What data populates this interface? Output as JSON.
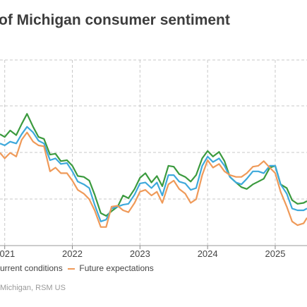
{
  "title": "of Michigan consumer sentiment",
  "legend": {
    "items": [
      {
        "label": "urrent conditions",
        "color": "#ef9a59"
      },
      {
        "label": "Future expectations",
        "color": "#ef9a59"
      }
    ]
  },
  "source": "Michigan, RSM US",
  "colors": {
    "sentiment": "#3b9a3e",
    "current": "#3ea9db",
    "expectations": "#ef9a59",
    "grid": "#c8c8c8"
  },
  "chart_data": {
    "type": "line",
    "title": "of Michigan consumer sentiment",
    "xlabel": "",
    "ylabel": "",
    "x_ticks": [
      "2021",
      "2022",
      "2023",
      "2024",
      "2025"
    ],
    "x_tick_values": [
      2021,
      2022,
      2023,
      2024,
      2025
    ],
    "xlim": [
      2020.93,
      2025.47
    ],
    "ylim": [
      0,
      1
    ],
    "grid": true,
    "legend_position": "bottom-left",
    "x": [
      2020.93,
      2021.0,
      2021.08,
      2021.17,
      2021.25,
      2021.33,
      2021.42,
      2021.5,
      2021.58,
      2021.67,
      2021.75,
      2021.83,
      2021.92,
      2022.0,
      2022.08,
      2022.17,
      2022.25,
      2022.33,
      2022.42,
      2022.5,
      2022.58,
      2022.67,
      2022.75,
      2022.83,
      2022.92,
      2023.0,
      2023.08,
      2023.17,
      2023.25,
      2023.33,
      2023.42,
      2023.5,
      2023.58,
      2023.67,
      2023.75,
      2023.83,
      2023.92,
      2024.0,
      2024.08,
      2024.17,
      2024.25,
      2024.33,
      2024.42,
      2024.5,
      2024.58,
      2024.67,
      2024.75,
      2024.83,
      2024.92,
      2025.0,
      2025.08,
      2025.17,
      2025.25,
      2025.33,
      2025.42,
      2025.47
    ],
    "series": [
      {
        "key": "sentiment",
        "values": [
          0.6,
          0.585,
          0.62,
          0.595,
          0.655,
          0.71,
          0.64,
          0.585,
          0.575,
          0.49,
          0.495,
          0.455,
          0.46,
          0.43,
          0.375,
          0.37,
          0.35,
          0.275,
          0.175,
          0.16,
          0.185,
          0.21,
          0.27,
          0.255,
          0.305,
          0.365,
          0.39,
          0.34,
          0.375,
          0.32,
          0.43,
          0.425,
          0.385,
          0.37,
          0.345,
          0.38,
          0.47,
          0.51,
          0.48,
          0.505,
          0.455,
          0.37,
          0.34,
          0.315,
          0.305,
          0.33,
          0.345,
          0.36,
          0.42,
          0.43,
          0.33,
          0.31,
          0.245,
          0.225,
          0.23,
          0.24
        ]
      },
      {
        "key": "current",
        "values": [
          0.55,
          0.54,
          0.56,
          0.55,
          0.6,
          0.64,
          0.61,
          0.565,
          0.55,
          0.46,
          0.47,
          0.44,
          0.445,
          0.4,
          0.345,
          0.33,
          0.31,
          0.22,
          0.13,
          0.14,
          0.2,
          0.21,
          0.22,
          0.225,
          0.275,
          0.335,
          0.34,
          0.31,
          0.34,
          0.27,
          0.38,
          0.38,
          0.345,
          0.335,
          0.3,
          0.31,
          0.43,
          0.48,
          0.45,
          0.47,
          0.43,
          0.37,
          0.34,
          0.33,
          0.36,
          0.4,
          0.4,
          0.39,
          0.43,
          0.43,
          0.33,
          0.28,
          0.2,
          0.19,
          0.19,
          0.2
        ]
      },
      {
        "key": "expectations",
        "values": [
          0.5,
          0.47,
          0.5,
          0.48,
          0.57,
          0.61,
          0.56,
          0.54,
          0.535,
          0.4,
          0.42,
          0.39,
          0.39,
          0.35,
          0.3,
          0.28,
          0.25,
          0.19,
          0.1,
          0.1,
          0.21,
          0.215,
          0.19,
          0.18,
          0.23,
          0.29,
          0.3,
          0.27,
          0.29,
          0.23,
          0.33,
          0.35,
          0.305,
          0.28,
          0.23,
          0.25,
          0.38,
          0.46,
          0.42,
          0.44,
          0.4,
          0.38,
          0.37,
          0.37,
          0.39,
          0.425,
          0.43,
          0.455,
          0.42,
          0.39,
          0.29,
          0.21,
          0.13,
          0.11,
          0.12,
          0.15
        ]
      }
    ]
  }
}
